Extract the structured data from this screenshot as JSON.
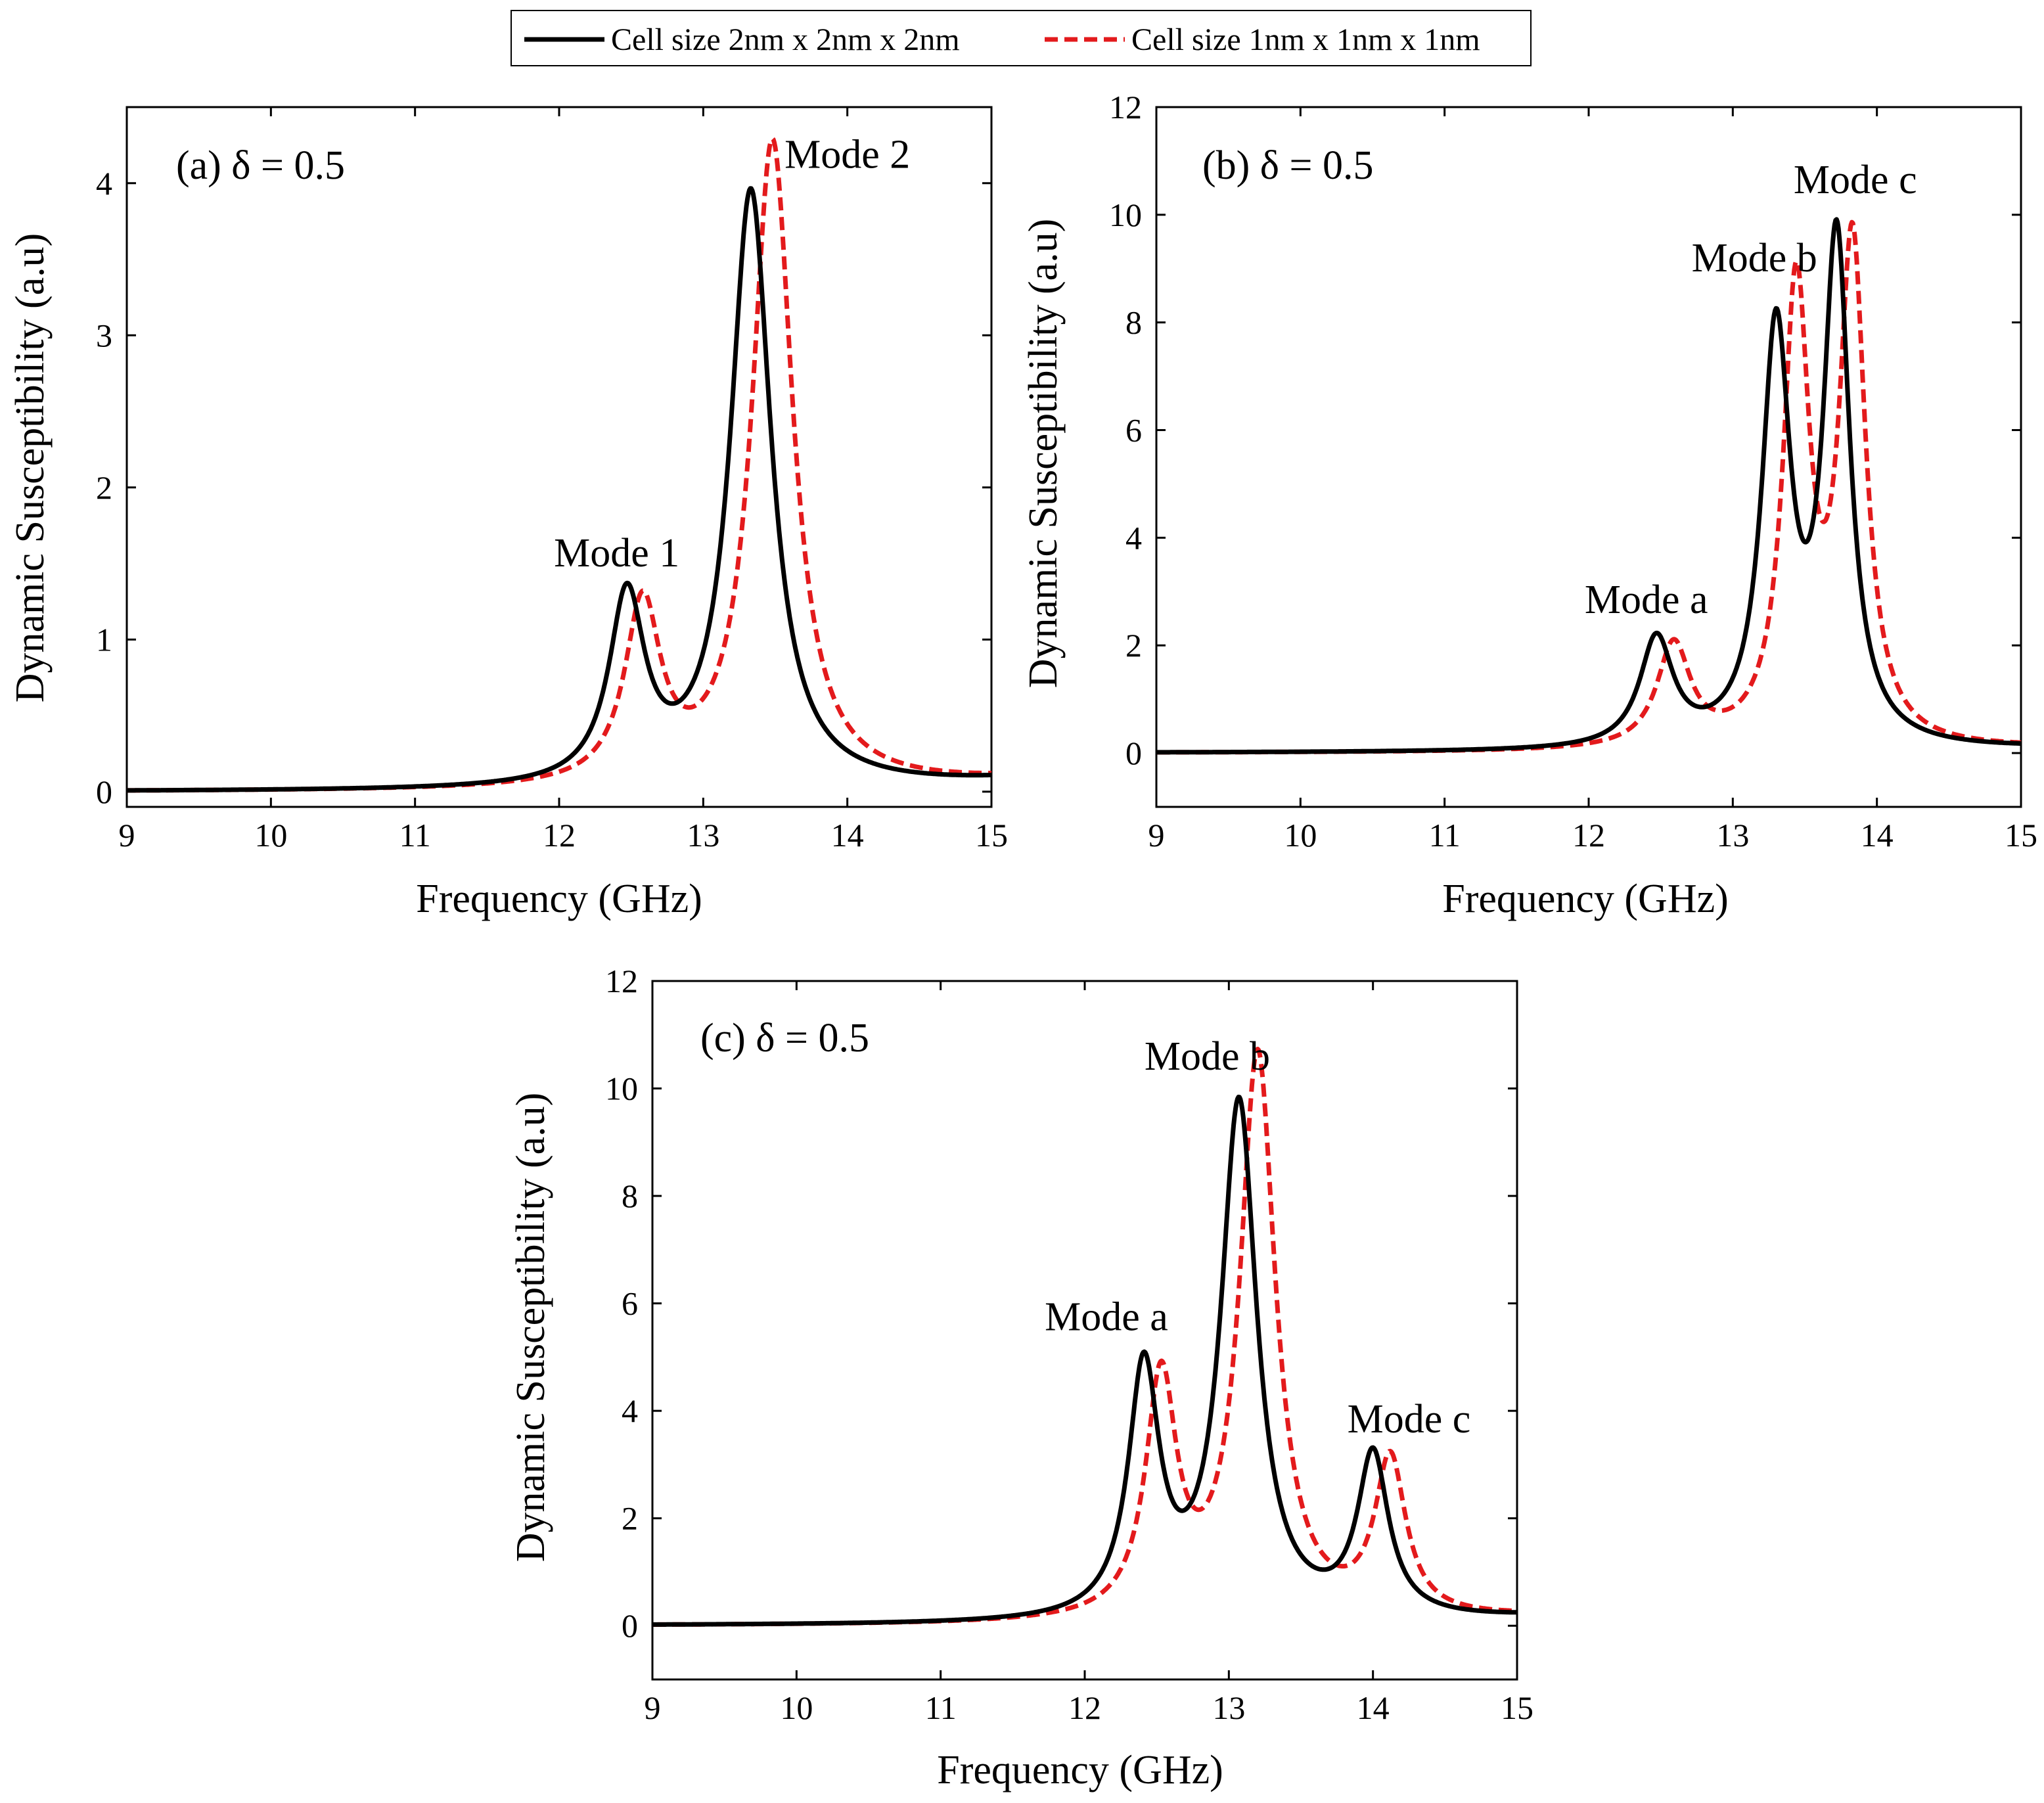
{
  "legend": {
    "items": [
      {
        "label": "Cell size 2nm x 2nm x 2nm",
        "color": "#000000",
        "style": "solid"
      },
      {
        "label": "Cell size 1nm x 1nm x 1nm",
        "color": "#e31a1c",
        "style": "dashed"
      }
    ]
  },
  "chart_data": [
    {
      "id": "a",
      "type": "line",
      "title": "(a) δ = 0.5",
      "xlabel": "Frequency (GHz)",
      "ylabel": "Dynamic Susceptibility (a.u)",
      "xlim": [
        9,
        15
      ],
      "ylim": [
        -0.1,
        4.5
      ],
      "xticks": [
        9,
        10,
        11,
        12,
        13,
        14,
        15
      ],
      "yticks": [
        0,
        1,
        2,
        3,
        4
      ],
      "series": [
        {
          "name": "Cell size 2nm x 2nm x 2nm",
          "color": "#000000",
          "dashed": false,
          "baseline": 0,
          "peaks": [
            {
              "f": 12.47,
              "A": 1.22,
              "w": 0.15
            },
            {
              "f": 13.33,
              "A": 3.92,
              "w": 0.17
            }
          ]
        },
        {
          "name": "Cell size 1nm x 1nm x 1nm",
          "color": "#e31a1c",
          "dashed": true,
          "baseline": 0,
          "peaks": [
            {
              "f": 12.58,
              "A": 1.17,
              "w": 0.15
            },
            {
              "f": 13.48,
              "A": 4.25,
              "w": 0.17
            }
          ]
        }
      ],
      "annotations": [
        {
          "text": "Mode 1",
          "x": 12.4,
          "y": 1.48
        },
        {
          "text": "Mode 2",
          "x": 14.0,
          "y": 4.1
        }
      ]
    },
    {
      "id": "b",
      "type": "line",
      "title": "(b) δ = 0.5",
      "xlabel": "Frequency (GHz)",
      "ylabel": "Dynamic Susceptibility (a.u)",
      "xlim": [
        9,
        15
      ],
      "ylim": [
        -1,
        12
      ],
      "xticks": [
        9,
        10,
        11,
        12,
        13,
        14,
        15
      ],
      "yticks": [
        0,
        2,
        4,
        6,
        8,
        10,
        12
      ],
      "series": [
        {
          "name": "Cell size 2nm x 2nm x 2nm",
          "color": "#000000",
          "dashed": false,
          "baseline": 0,
          "peaks": [
            {
              "f": 12.47,
              "A": 2.0,
              "w": 0.14
            },
            {
              "f": 13.3,
              "A": 7.6,
              "w": 0.12
            },
            {
              "f": 13.72,
              "A": 9.3,
              "w": 0.11
            }
          ]
        },
        {
          "name": "Cell size 1nm x 1nm x 1nm",
          "color": "#e31a1c",
          "dashed": true,
          "baseline": 0,
          "peaks": [
            {
              "f": 12.59,
              "A": 1.9,
              "w": 0.14
            },
            {
              "f": 13.44,
              "A": 8.4,
              "w": 0.11
            },
            {
              "f": 13.83,
              "A": 9.2,
              "w": 0.11
            }
          ]
        }
      ],
      "annotations": [
        {
          "text": "Mode a",
          "x": 12.4,
          "y": 2.6
        },
        {
          "text": "Mode b",
          "x": 13.15,
          "y": 8.95
        },
        {
          "text": "Mode c",
          "x": 13.85,
          "y": 10.4
        }
      ]
    },
    {
      "id": "c",
      "type": "line",
      "title": "(c) δ = 0.5",
      "xlabel": "Frequency (GHz)",
      "ylabel": "Dynamic Susceptibility (a.u)",
      "xlim": [
        9,
        15
      ],
      "ylim": [
        -1,
        12
      ],
      "xticks": [
        9,
        10,
        11,
        12,
        13,
        14,
        15
      ],
      "yticks": [
        0,
        2,
        4,
        6,
        8,
        10,
        12
      ],
      "series": [
        {
          "name": "Cell size 2nm x 2nm x 2nm",
          "color": "#000000",
          "dashed": false,
          "baseline": 0,
          "peaks": [
            {
              "f": 12.41,
              "A": 4.6,
              "w": 0.13
            },
            {
              "f": 13.07,
              "A": 9.6,
              "w": 0.15
            },
            {
              "f": 14.0,
              "A": 3.0,
              "w": 0.13
            }
          ]
        },
        {
          "name": "Cell size 1nm x 1nm x 1nm",
          "color": "#e31a1c",
          "dashed": true,
          "baseline": 0,
          "peaks": [
            {
              "f": 12.53,
              "A": 4.4,
              "w": 0.13
            },
            {
              "f": 13.2,
              "A": 10.5,
              "w": 0.15
            },
            {
              "f": 14.12,
              "A": 2.9,
              "w": 0.13
            }
          ]
        }
      ],
      "annotations": [
        {
          "text": "Mode a",
          "x": 12.15,
          "y": 5.5
        },
        {
          "text": "Mode b",
          "x": 12.85,
          "y": 10.35
        },
        {
          "text": "Mode c",
          "x": 14.25,
          "y": 3.6
        }
      ]
    }
  ]
}
